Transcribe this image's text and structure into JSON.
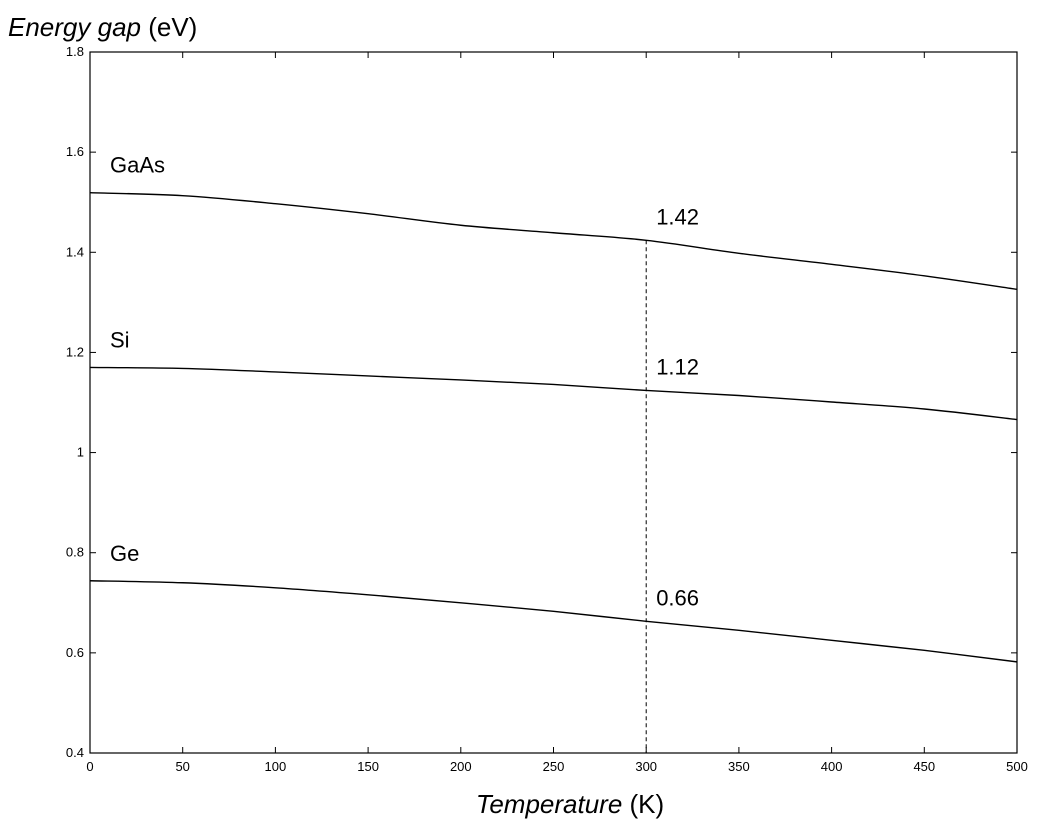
{
  "chart_data": {
    "type": "line",
    "ylabel_italic": "Energy gap",
    "ylabel_unit": " (eV)",
    "xlabel_italic": "Temperature",
    "xlabel_unit": " (K)",
    "xlim": [
      0,
      500
    ],
    "ylim": [
      0.4,
      1.8
    ],
    "xticks": [
      0,
      50,
      100,
      150,
      200,
      250,
      300,
      350,
      400,
      450,
      500
    ],
    "yticks": [
      0.4,
      0.6,
      0.8,
      1,
      1.2,
      1.4,
      1.6,
      1.8
    ],
    "ytick_labels": [
      "0.4",
      "0.6",
      "0.8",
      "1",
      "1.2",
      "1.4",
      "1.6",
      "1.8"
    ],
    "grid": false,
    "reference_line": {
      "x": 300,
      "style": "dashed"
    },
    "x": [
      0,
      50,
      100,
      150,
      200,
      250,
      300,
      350,
      400,
      450,
      500
    ],
    "series": [
      {
        "name": "GaAs",
        "values": [
          1.519,
          1.513,
          1.497,
          1.477,
          1.454,
          1.439,
          1.424,
          1.398,
          1.376,
          1.353,
          1.326
        ],
        "label_value": "1.42"
      },
      {
        "name": "Si",
        "values": [
          1.17,
          1.168,
          1.161,
          1.153,
          1.145,
          1.136,
          1.124,
          1.114,
          1.101,
          1.087,
          1.066
        ],
        "label_value": "1.12"
      },
      {
        "name": "Ge",
        "values": [
          0.744,
          0.74,
          0.73,
          0.716,
          0.7,
          0.683,
          0.663,
          0.645,
          0.625,
          0.605,
          0.582
        ],
        "label_value": "0.66"
      }
    ]
  }
}
